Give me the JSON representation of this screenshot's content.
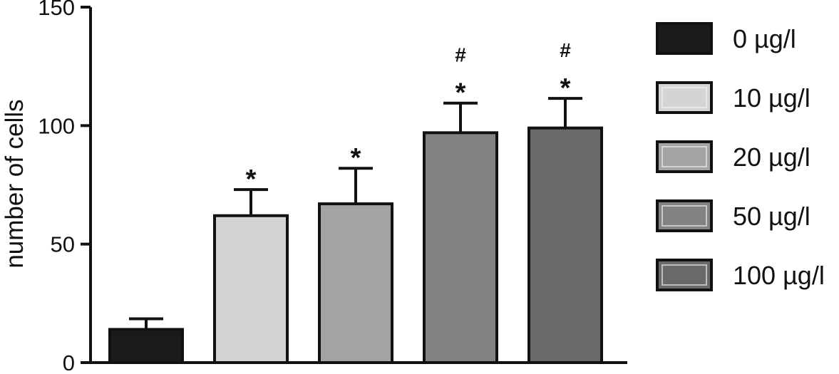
{
  "chart_data": {
    "type": "bar",
    "title": "",
    "xlabel": "",
    "ylabel": "number of cells",
    "ylim": [
      0,
      150
    ],
    "yticks": [
      0,
      50,
      100,
      150
    ],
    "grid": false,
    "legend_position": "right",
    "categories": [
      "0 µg/l",
      "10 µg/l",
      "20 µg/l",
      "50 µg/l",
      "100 µg/l"
    ],
    "values": [
      14,
      62,
      67,
      97,
      99
    ],
    "error_bars": [
      4.5,
      11,
      15,
      12.5,
      12.5
    ],
    "colors": [
      "#1a1a1a",
      "#d4d4d4",
      "#a3a3a3",
      "#828282",
      "#696969"
    ],
    "annotations": [
      [],
      [
        "*"
      ],
      [
        "*"
      ],
      [
        "#",
        "*"
      ],
      [
        "#",
        "*"
      ]
    ]
  }
}
